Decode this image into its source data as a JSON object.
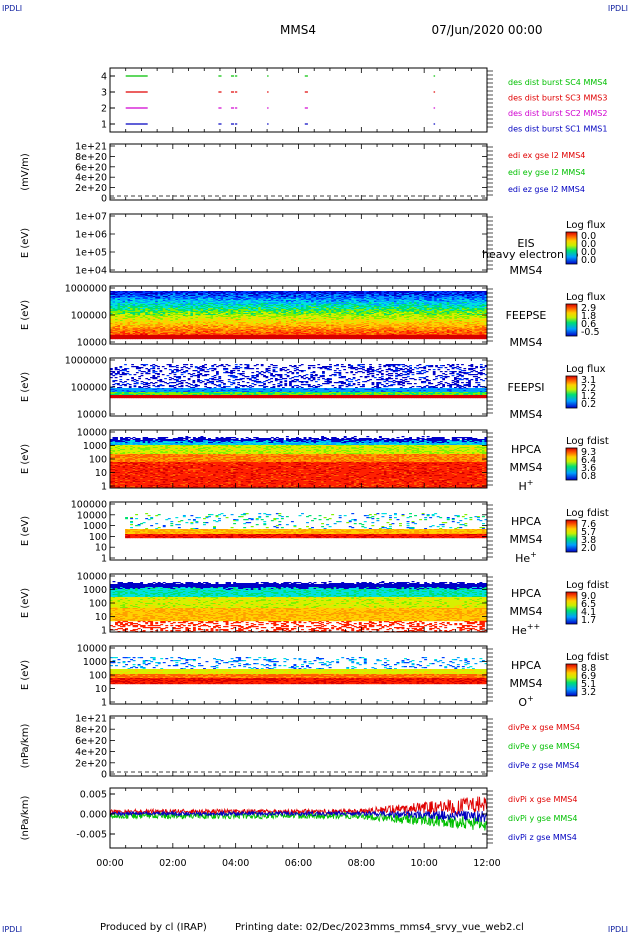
{
  "header": {
    "corner_label": "IPDLI",
    "spacecraft": "MMS4",
    "datetime": "07/Jun/2020 00:00"
  },
  "footer": {
    "produced_by": "Produced by cl (IRAP)",
    "printing_date": "Printing date: 02/Dec/2023",
    "script_name": "mms_mms4_srvy_vue_web2.cl"
  },
  "time_axis": {
    "ticks": [
      "00:00",
      "02:00",
      "04:00",
      "06:00",
      "08:00",
      "10:00",
      "12:00"
    ],
    "range_hours": [
      0,
      12
    ]
  },
  "colors": {
    "red": "#e00000",
    "green": "#00c000",
    "blue": "#0000c0",
    "magenta": "#d000d0",
    "dashed": "#000000"
  },
  "chart_data": [
    {
      "id": "burst",
      "type": "scatter",
      "ylabel": "",
      "ylim": [
        0.5,
        4.5
      ],
      "yticks": [
        "1",
        "2",
        "3",
        "4"
      ],
      "legend_placement": "right",
      "series": [
        {
          "name": "des dist burst SC1 MMS1",
          "color": "#0000c0",
          "level": 1
        },
        {
          "name": "des dist burst SC2 MMS2",
          "color": "#d000d0",
          "level": 2
        },
        {
          "name": "des dist burst SC3 MMS3",
          "color": "#e00000",
          "level": 3
        },
        {
          "name": "des dist burst SC4 MMS4",
          "color": "#00c000",
          "level": 4
        }
      ],
      "intervals_hours": [
        [
          0.5,
          1.2
        ],
        [
          3.45,
          3.55
        ],
        [
          3.85,
          3.95
        ],
        [
          3.98,
          4.05
        ],
        [
          5.0,
          5.02
        ],
        [
          6.2,
          6.3
        ],
        [
          10.3,
          10.32
        ]
      ]
    },
    {
      "id": "edi",
      "type": "line",
      "ylabel": "(mV/m)",
      "yticks": [
        "0",
        "2e+20",
        "4e+20",
        "6e+20",
        "8e+20",
        "1e+21"
      ],
      "legend_placement": "right",
      "zero_line": "dashed",
      "series": [
        {
          "name": "edi ex gse l2 MMS4",
          "color": "#e00000"
        },
        {
          "name": "edi ey gse l2 MMS4",
          "color": "#00c000"
        },
        {
          "name": "edi ez gse l2 MMS4",
          "color": "#0000c0"
        }
      ]
    },
    {
      "id": "eis",
      "type": "heatmap",
      "ylabel": "E (eV)",
      "yticks": [
        "1e+04",
        "1e+05",
        "1e+06",
        "1e+07"
      ],
      "instrument": "EIS",
      "spacecraft": "MMS4",
      "overlay_text": "heavy electron to",
      "colorbar_title": "Log flux",
      "colorbar_values": [
        "0.0",
        "0.0",
        "0.0",
        "0.0"
      ]
    },
    {
      "id": "feepse",
      "type": "heatmap",
      "ylabel": "E (eV)",
      "yticks": [
        "10000",
        "100000",
        "1000000"
      ],
      "instrument": "FEEPSE",
      "spacecraft": "MMS4",
      "colorbar_title": "Log flux",
      "colorbar_values": [
        "2.9",
        "1.8",
        "0.6",
        "-0.5"
      ]
    },
    {
      "id": "feepsi",
      "type": "heatmap",
      "ylabel": "E (eV)",
      "yticks": [
        "10000",
        "100000",
        "1000000"
      ],
      "instrument": "FEEPSI",
      "spacecraft": "MMS4",
      "colorbar_title": "Log flux",
      "colorbar_values": [
        "3.1",
        "2.2",
        "1.2",
        "0.2"
      ]
    },
    {
      "id": "hpca_h",
      "type": "heatmap",
      "ylabel": "E (eV)",
      "yticks": [
        "1",
        "10",
        "100",
        "1000",
        "10000"
      ],
      "instrument": "HPCA",
      "spacecraft": "MMS4",
      "species": "H",
      "species_charge": "+",
      "colorbar_title": "Log fdist",
      "colorbar_values": [
        "9.3",
        "6.4",
        "3.6",
        "0.8"
      ]
    },
    {
      "id": "hpca_he",
      "type": "heatmap",
      "ylabel": "E (eV)",
      "yticks": [
        "1",
        "10",
        "100",
        "1000",
        "10000",
        "100000"
      ],
      "instrument": "HPCA",
      "spacecraft": "MMS4",
      "species": "He",
      "species_charge": "+",
      "colorbar_title": "Log fdist",
      "colorbar_values": [
        "7.6",
        "5.7",
        "3.8",
        "2.0"
      ]
    },
    {
      "id": "hpca_hepp",
      "type": "heatmap",
      "ylabel": "E (eV)",
      "yticks": [
        "1",
        "10",
        "100",
        "1000",
        "10000"
      ],
      "instrument": "HPCA",
      "spacecraft": "MMS4",
      "species": "He",
      "species_charge": "++",
      "colorbar_title": "Log fdist",
      "colorbar_values": [
        "9.0",
        "6.5",
        "4.1",
        "1.7"
      ]
    },
    {
      "id": "hpca_o",
      "type": "heatmap",
      "ylabel": "E (eV)",
      "yticks": [
        "1",
        "10",
        "100",
        "1000",
        "10000"
      ],
      "instrument": "HPCA",
      "spacecraft": "MMS4",
      "species": "O",
      "species_charge": "+",
      "colorbar_title": "Log fdist",
      "colorbar_values": [
        "8.8",
        "6.9",
        "5.1",
        "3.2"
      ]
    },
    {
      "id": "divpe",
      "type": "line",
      "ylabel": "(nPa/km)",
      "yticks": [
        "0",
        "2e+20",
        "4e+20",
        "6e+20",
        "8e+20",
        "1e+21"
      ],
      "legend_placement": "right",
      "zero_line": "dashed",
      "series": [
        {
          "name": "divPe x gse MMS4",
          "color": "#e00000"
        },
        {
          "name": "divPe y gse MMS4",
          "color": "#00c000"
        },
        {
          "name": "divPe z gse MMS4",
          "color": "#0000c0"
        }
      ]
    },
    {
      "id": "divpi",
      "type": "line",
      "ylabel": "(nPa/km)",
      "ylim": [
        -0.0085,
        0.0065
      ],
      "yticks": [
        "0.005",
        "0.000",
        "-0.005"
      ],
      "ytick_values": [
        0.005,
        0.0,
        -0.005
      ],
      "legend_placement": "right",
      "series": [
        {
          "name": "divPi x gse MMS4",
          "color": "#e00000",
          "offset_start": 0.0006,
          "offset_end": 0.0022,
          "spread_start": 0.0006,
          "spread_end": 0.0025
        },
        {
          "name": "divPi y gse MMS4",
          "color": "#00c000",
          "offset_start": -0.0004,
          "offset_end": -0.0025,
          "spread_start": 0.0008,
          "spread_end": 0.0018
        },
        {
          "name": "divPi z gse MMS4",
          "color": "#0000c0",
          "offset_start": 0.0001,
          "offset_end": -0.0006,
          "spread_start": 0.0005,
          "spread_end": 0.0015
        }
      ]
    }
  ]
}
